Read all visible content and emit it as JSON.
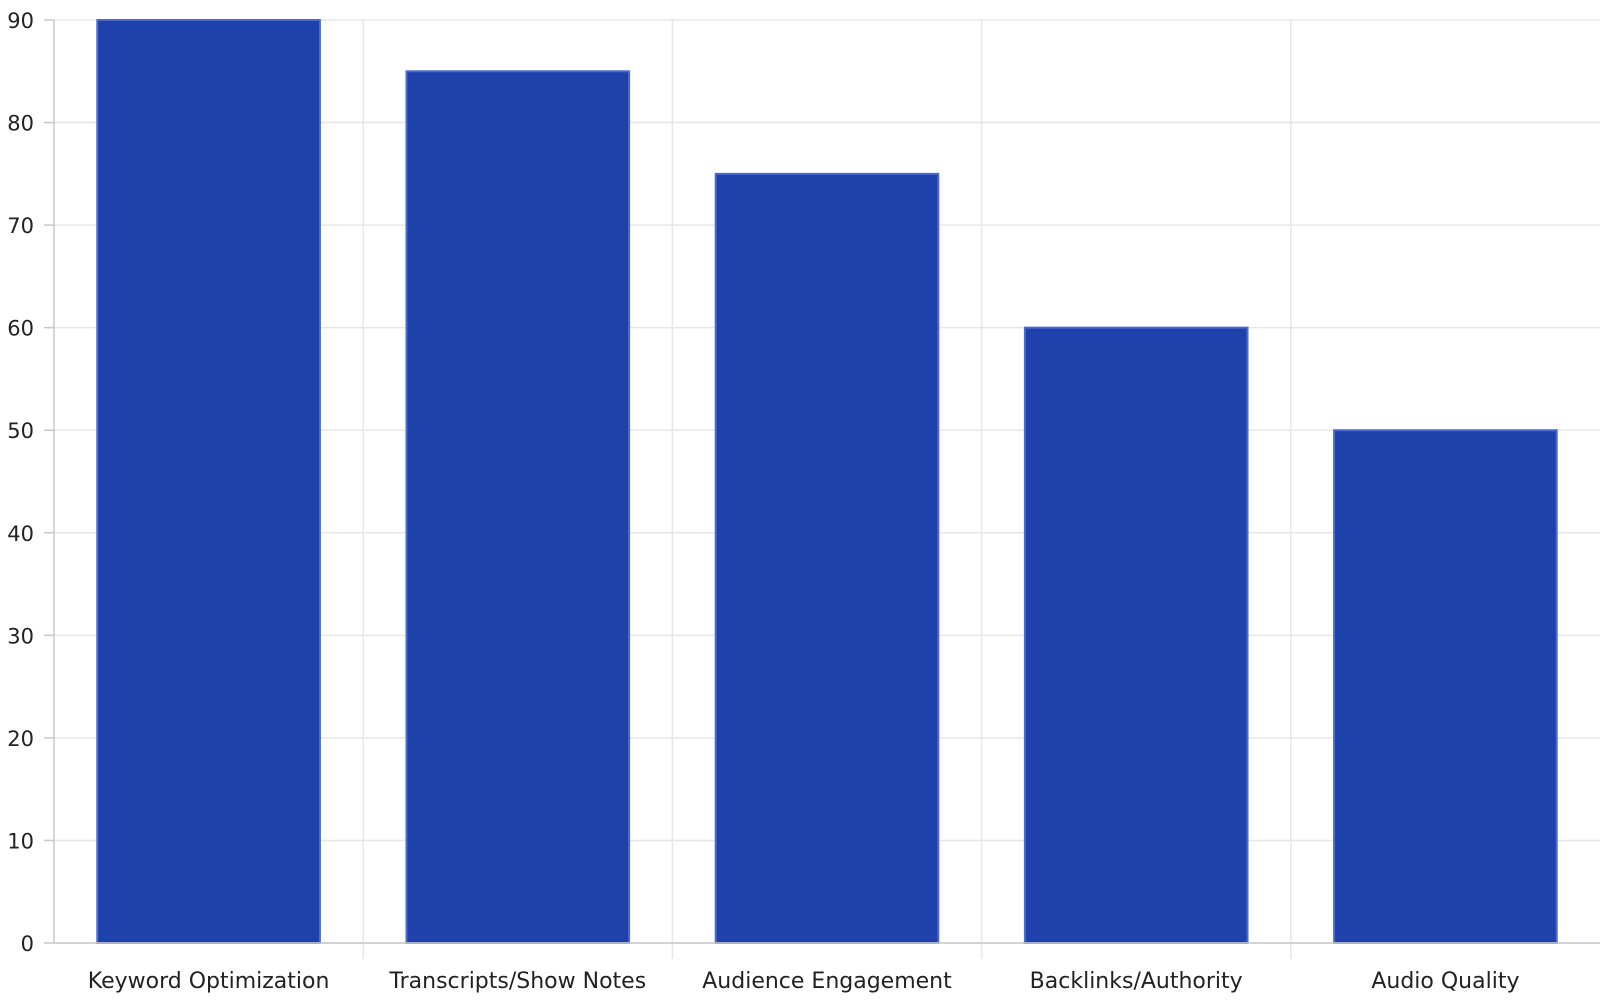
{
  "chart_data": {
    "type": "bar",
    "categories": [
      "Keyword Optimization",
      "Transcripts/Show Notes",
      "Audience Engagement",
      "Backlinks/Authority",
      "Audio Quality"
    ],
    "values": [
      90,
      85,
      75,
      60,
      50
    ],
    "ylim": [
      0,
      90
    ],
    "yticks": [
      0,
      10,
      20,
      30,
      40,
      50,
      60,
      70,
      80,
      90
    ],
    "grid": true,
    "bar_color": "#1f41ac",
    "bar_edge_color": "#4a6ad0"
  }
}
